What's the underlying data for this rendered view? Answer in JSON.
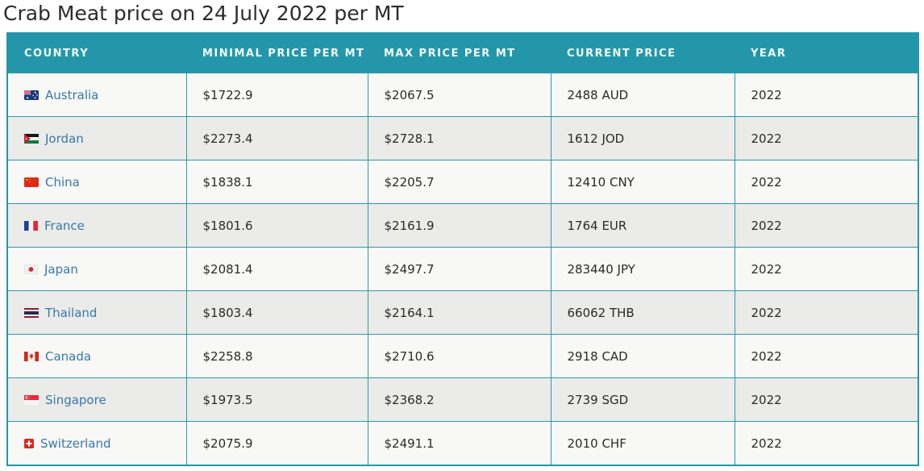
{
  "page_title": "Crab Meat price on 24 July 2022 per MT",
  "table": {
    "columns": {
      "country": "Country",
      "min_price": "Minimal price per MT",
      "max_price": "Max price per MT",
      "current_price": "Current price",
      "year": "Year"
    },
    "rows": [
      {
        "flag": "australia",
        "country": "Australia",
        "min_price": "$1722.9",
        "max_price": "$2067.5",
        "current_price": "2488 AUD",
        "year": "2022"
      },
      {
        "flag": "jordan",
        "country": "Jordan",
        "min_price": "$2273.4",
        "max_price": "$2728.1",
        "current_price": "1612 JOD",
        "year": "2022"
      },
      {
        "flag": "china",
        "country": "China",
        "min_price": "$1838.1",
        "max_price": "$2205.7",
        "current_price": "12410 CNY",
        "year": "2022"
      },
      {
        "flag": "france",
        "country": "France",
        "min_price": "$1801.6",
        "max_price": "$2161.9",
        "current_price": "1764 EUR",
        "year": "2022"
      },
      {
        "flag": "japan",
        "country": "Japan",
        "min_price": "$2081.4",
        "max_price": "$2497.7",
        "current_price": "283440 JPY",
        "year": "2022"
      },
      {
        "flag": "thailand",
        "country": "Thailand",
        "min_price": "$1803.4",
        "max_price": "$2164.1",
        "current_price": "66062 THB",
        "year": "2022"
      },
      {
        "flag": "canada",
        "country": "Canada",
        "min_price": "$2258.8",
        "max_price": "$2710.6",
        "current_price": "2918 CAD",
        "year": "2022"
      },
      {
        "flag": "singapore",
        "country": "Singapore",
        "min_price": "$1973.5",
        "max_price": "$2368.2",
        "current_price": "2739 SGD",
        "year": "2022"
      },
      {
        "flag": "switzerland",
        "country": "Switzerland",
        "min_price": "$2075.9",
        "max_price": "$2491.1",
        "current_price": "2010 CHF",
        "year": "2022"
      }
    ]
  },
  "icons": {
    "flags": [
      "australia-flag-icon",
      "jordan-flag-icon",
      "china-flag-icon",
      "france-flag-icon",
      "japan-flag-icon",
      "thailand-flag-icon",
      "canada-flag-icon",
      "singapore-flag-icon",
      "switzerland-flag-icon"
    ]
  },
  "colors": {
    "header_bg": "#2397a9",
    "table_border": "#2596a8",
    "cell_border": "#2a9aab",
    "row_odd_bg": "#f8f8f7",
    "row_even_bg": "#ebebe9",
    "country_link": "#3779aa",
    "body_text": "#2a2a2a",
    "title_text": "#2b2b2b",
    "header_text": "#f2fafc"
  }
}
